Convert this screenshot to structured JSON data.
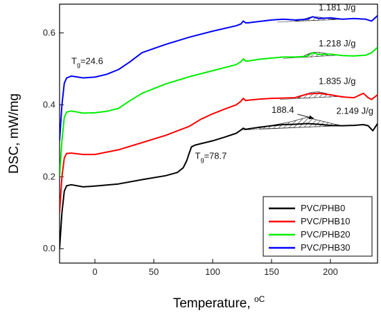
{
  "chart_data": {
    "type": "line",
    "xlabel": "Temperature, ",
    "xlabel_unit": "oC",
    "ylabel": "DSC, mW/mg",
    "xlim": [
      -30,
      240
    ],
    "ylim": [
      -0.04,
      0.68
    ],
    "xticks": [
      0,
      50,
      100,
      150,
      200
    ],
    "yticks": [
      0.0,
      0.2,
      0.4,
      0.6
    ],
    "ytick_labels": [
      "0.0",
      "0.2",
      "0.4",
      "0.6"
    ],
    "grid": false,
    "legend_position": "bottom-right",
    "series": [
      {
        "name": "PVC/PHB0",
        "color": "#000000",
        "x": [
          -30,
          -28,
          -26,
          -24,
          -20,
          -10,
          0,
          20,
          40,
          60,
          70,
          75,
          78,
          80,
          82,
          85,
          90,
          100,
          110,
          120,
          124,
          126,
          128,
          130,
          140,
          150,
          160,
          170,
          180,
          190,
          200,
          210,
          220,
          228,
          232,
          236,
          240
        ],
        "y": [
          0.0,
          0.1,
          0.16,
          0.175,
          0.178,
          0.172,
          0.174,
          0.18,
          0.192,
          0.203,
          0.212,
          0.225,
          0.245,
          0.265,
          0.283,
          0.288,
          0.292,
          0.3,
          0.31,
          0.321,
          0.33,
          0.335,
          0.332,
          0.333,
          0.338,
          0.342,
          0.345,
          0.346,
          0.348,
          0.346,
          0.343,
          0.342,
          0.343,
          0.345,
          0.342,
          0.328,
          0.348
        ]
      },
      {
        "name": "PVC/PHB10",
        "color": "#ff0000",
        "x": [
          -30,
          -28,
          -26,
          -24,
          -20,
          -10,
          0,
          20,
          40,
          60,
          80,
          90,
          100,
          110,
          120,
          124,
          126,
          128,
          130,
          140,
          150,
          160,
          170,
          175,
          180,
          190,
          200,
          210,
          220,
          228,
          232,
          235,
          240
        ],
        "y": [
          0.1,
          0.2,
          0.252,
          0.265,
          0.266,
          0.262,
          0.262,
          0.275,
          0.295,
          0.315,
          0.34,
          0.36,
          0.375,
          0.388,
          0.4,
          0.41,
          0.418,
          0.412,
          0.413,
          0.416,
          0.418,
          0.419,
          0.42,
          0.425,
          0.43,
          0.432,
          0.428,
          0.422,
          0.42,
          0.432,
          0.42,
          0.415,
          0.428
        ]
      },
      {
        "name": "PVC/PHB20",
        "color": "#00ee00",
        "x": [
          -30,
          -28,
          -26,
          -24,
          -20,
          -10,
          0,
          10,
          20,
          30,
          40,
          60,
          80,
          100,
          120,
          124,
          126,
          128,
          130,
          140,
          150,
          160,
          170,
          180,
          185,
          190,
          200,
          210,
          220,
          230,
          235,
          240
        ],
        "y": [
          0.2,
          0.3,
          0.365,
          0.38,
          0.383,
          0.377,
          0.378,
          0.382,
          0.39,
          0.412,
          0.432,
          0.458,
          0.478,
          0.495,
          0.512,
          0.52,
          0.528,
          0.522,
          0.522,
          0.527,
          0.53,
          0.533,
          0.533,
          0.535,
          0.545,
          0.54,
          0.541,
          0.537,
          0.536,
          0.538,
          0.545,
          0.56
        ]
      },
      {
        "name": "PVC/PHB30",
        "color": "#0000ff",
        "x": [
          -30,
          -28,
          -26,
          -24,
          -20,
          -10,
          0,
          10,
          20,
          30,
          40,
          60,
          80,
          100,
          120,
          124,
          126,
          128,
          130,
          140,
          150,
          160,
          170,
          180,
          185,
          190,
          200,
          210,
          220,
          230,
          235,
          240
        ],
        "y": [
          0.3,
          0.4,
          0.46,
          0.475,
          0.48,
          0.475,
          0.477,
          0.485,
          0.498,
          0.52,
          0.545,
          0.568,
          0.588,
          0.605,
          0.62,
          0.625,
          0.633,
          0.628,
          0.628,
          0.632,
          0.636,
          0.638,
          0.636,
          0.638,
          0.645,
          0.64,
          0.642,
          0.638,
          0.64,
          0.638,
          0.633,
          0.648
        ]
      }
    ],
    "hatched_peaks": [
      {
        "series": "PVC/PHB0",
        "x_start": 140,
        "x_end": 210,
        "baseline_y": [
          0.333,
          0.342
        ],
        "points": [
          [
            140,
            0.336
          ],
          [
            150,
            0.343
          ],
          [
            165,
            0.352
          ],
          [
            180,
            0.365
          ],
          [
            190,
            0.357
          ],
          [
            200,
            0.349
          ],
          [
            210,
            0.342
          ]
        ]
      },
      {
        "series": "PVC/PHB10",
        "x_start": 172,
        "x_end": 206,
        "baseline_y": [
          0.418,
          0.423
        ],
        "points": [
          [
            172,
            0.418
          ],
          [
            178,
            0.428
          ],
          [
            184,
            0.435
          ],
          [
            190,
            0.436
          ],
          [
            196,
            0.432
          ],
          [
            202,
            0.426
          ],
          [
            206,
            0.423
          ]
        ]
      },
      {
        "series": "PVC/PHB20",
        "x_start": 175,
        "x_end": 205,
        "baseline_y": [
          0.532,
          0.538
        ],
        "points": [
          [
            175,
            0.532
          ],
          [
            180,
            0.54
          ],
          [
            185,
            0.546
          ],
          [
            190,
            0.546
          ],
          [
            196,
            0.543
          ],
          [
            201,
            0.54
          ],
          [
            205,
            0.538
          ]
        ]
      },
      {
        "series": "PVC/PHB30",
        "x_start": 170,
        "x_end": 205,
        "baseline_y": [
          0.633,
          0.637
        ],
        "points": [
          [
            170,
            0.633
          ],
          [
            177,
            0.638
          ],
          [
            184,
            0.645
          ],
          [
            190,
            0.644
          ],
          [
            196,
            0.641
          ],
          [
            201,
            0.639
          ],
          [
            205,
            0.637
          ]
        ]
      }
    ],
    "annotations": {
      "tg_phb0": {
        "main": "T",
        "sub": "g",
        "rest": "=78.7",
        "x": 85,
        "y": 0.25
      },
      "tg_phb30": {
        "main": "T",
        "sub": "g",
        "rest": "=24.6",
        "x": -20,
        "y": 0.513
      },
      "enthalpy_phb30": {
        "text": "1.181 J/g",
        "x": 190,
        "y": 0.663
      },
      "enthalpy_phb20": {
        "text": "1.218 J/g",
        "x": 190,
        "y": 0.563
      },
      "enthalpy_phb10": {
        "text": "1.835 J/g",
        "x": 190,
        "y": 0.458
      },
      "enthalpy_phb0": {
        "text": "2.149 J/g",
        "x": 205,
        "y": 0.375
      },
      "peak_temp_phb0": {
        "text": "188.4",
        "x": 150,
        "y": 0.378
      }
    }
  }
}
